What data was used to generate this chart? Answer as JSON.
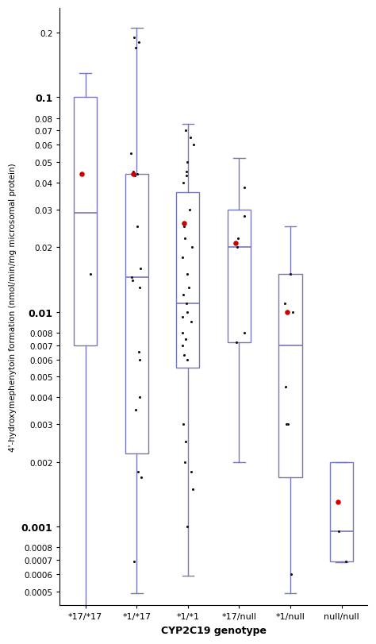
{
  "categories": [
    "*17/*17",
    "*1/*17",
    "*1/*1",
    "*17/null",
    "*1/null",
    "null/null"
  ],
  "xlabel": "CYP2C19 genotype",
  "ylabel": "4'-hydroxymephenytoin formation (nmol/min/mg microsomal protein)",
  "box_color": "#7777bb",
  "dot_color": "#111111",
  "red_dot_color": "#cc0000",
  "boxes": [
    {
      "q1": 0.007,
      "median": 0.029,
      "q3": 0.1,
      "whislo": 0.00042,
      "whishi": 0.13,
      "dots": [
        0.015
      ],
      "red_dot": 0.044
    },
    {
      "q1": 0.0022,
      "median": 0.0145,
      "q3": 0.044,
      "whislo": 0.00049,
      "whishi": 0.21,
      "dots": [
        0.0065,
        0.013,
        0.014,
        0.0145,
        0.016,
        0.043,
        0.044,
        0.045,
        0.025,
        0.0035,
        0.004,
        0.0017,
        0.0018,
        0.00069,
        0.19,
        0.18,
        0.17,
        0.055,
        0.006
      ],
      "red_dot": 0.044
    },
    {
      "q1": 0.0055,
      "median": 0.011,
      "q3": 0.036,
      "whislo": 0.00059,
      "whishi": 0.075,
      "dots": [
        0.006,
        0.0063,
        0.007,
        0.0075,
        0.008,
        0.009,
        0.0095,
        0.01,
        0.011,
        0.012,
        0.013,
        0.015,
        0.018,
        0.02,
        0.022,
        0.025,
        0.03,
        0.04,
        0.043,
        0.045,
        0.05,
        0.06,
        0.065,
        0.07,
        0.0015,
        0.0018,
        0.002,
        0.0025,
        0.003,
        0.001
      ],
      "red_dot": 0.026
    },
    {
      "q1": 0.0072,
      "median": 0.02,
      "q3": 0.03,
      "whislo": 0.002,
      "whishi": 0.052,
      "dots": [
        0.008,
        0.02,
        0.022,
        0.028,
        0.038,
        0.0072
      ],
      "red_dot": 0.021
    },
    {
      "q1": 0.0017,
      "median": 0.007,
      "q3": 0.015,
      "whislo": 0.00049,
      "whishi": 0.025,
      "dots": [
        0.01,
        0.011,
        0.0045,
        0.015,
        0.0006,
        0.003,
        0.003
      ],
      "red_dot": 0.01
    },
    {
      "q1": 0.00069,
      "median": 0.00095,
      "q3": 0.002,
      "whislo": 0.00068,
      "whishi": 0.002,
      "dots": [
        0.00095,
        0.00069
      ],
      "red_dot": 0.0013
    }
  ],
  "yticks_major": [
    0.001,
    0.01,
    0.1
  ],
  "yticks_minor": [
    0.0005,
    0.0006,
    0.0007,
    0.0008,
    0.002,
    0.003,
    0.004,
    0.005,
    0.006,
    0.007,
    0.008,
    0.02,
    0.03,
    0.04,
    0.05,
    0.06,
    0.07,
    0.08,
    0.2
  ],
  "ytick_labels_minor": [
    "0.0005",
    "0.0006",
    "0.0007",
    "0.0008",
    "0.002",
    "0.003",
    "0.004",
    "0.005",
    "0.006",
    "0.007",
    "0.008",
    "0.02",
    "0.03",
    "0.04",
    "0.05",
    "0.06",
    "0.07",
    "0.08",
    "0.2"
  ],
  "ytick_labels_major": [
    "0.001",
    "0.01",
    "0.1"
  ]
}
